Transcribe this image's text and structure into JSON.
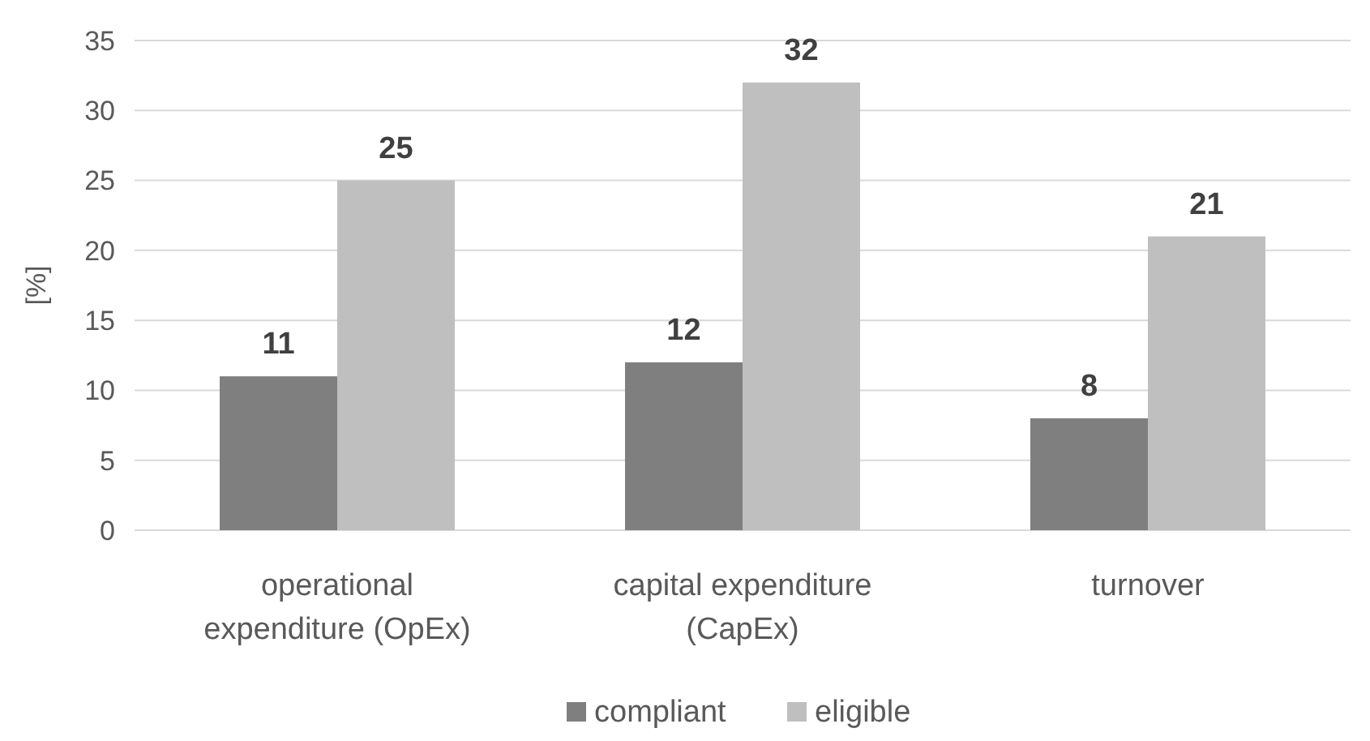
{
  "chart_data": {
    "type": "bar",
    "ylabel": "[%]",
    "categories": [
      "operational expenditure (OpEx)",
      "capital expenditure (CapEx)",
      "turnover"
    ],
    "series": [
      {
        "name": "compliant",
        "color": "#7f7f7f",
        "values": [
          11,
          12,
          8
        ]
      },
      {
        "name": "eligible",
        "color": "#bfbfbf",
        "values": [
          25,
          32,
          21
        ]
      }
    ],
    "ylim": [
      0,
      35
    ],
    "yticks": [
      0,
      5,
      10,
      15,
      20,
      25,
      30,
      35
    ],
    "grid": "y",
    "legend": "bottom",
    "data_labels": true
  }
}
